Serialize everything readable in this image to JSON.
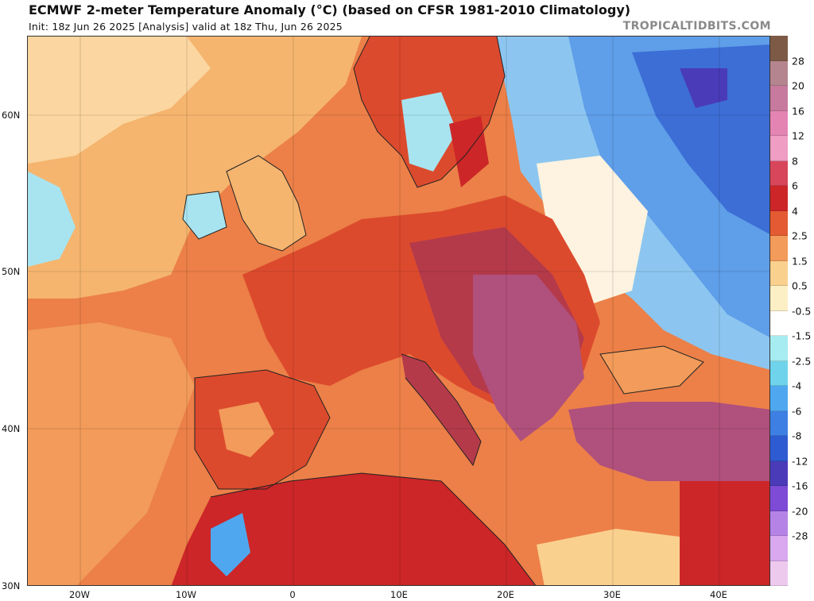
{
  "header": {
    "title": "ECMWF 2-meter Temperature Anomaly (°C) (based on CFSR 1981-2010 Climatology)",
    "subtitle": "Init: 18z Jun 26 2025   [Analysis]   valid at 18z Thu, Jun 26 2025",
    "brand": "TROPICALTIDBITS.COM"
  },
  "axes": {
    "lat_labels": [
      "60N",
      "50N",
      "40N",
      "30N"
    ],
    "lon_labels": [
      "20W",
      "10W",
      "0",
      "10E",
      "20E",
      "30E",
      "40E"
    ]
  },
  "colorbar": {
    "labels": [
      "28",
      "20",
      "16",
      "12",
      "8",
      "6",
      "4",
      "2.5",
      "1.5",
      "0.5",
      "-0.5",
      "-1.5",
      "-2.5",
      "-4",
      "-6",
      "-8",
      "-12",
      "-16",
      "-20",
      "-28"
    ],
    "colors": [
      "#7d5a46",
      "#b4858f",
      "#c77a9e",
      "#e384b3",
      "#ef9dc2",
      "#d7465b",
      "#cc2628",
      "#e45a32",
      "#f29b5a",
      "#fad08f",
      "#fcefc5",
      "#ffffff",
      "#a6ecf0",
      "#6fd4eb",
      "#4fa8ef",
      "#3e7fe3",
      "#2e5bd1",
      "#4a3bb8",
      "#7d4bd5",
      "#b583e6",
      "#d9a8ee",
      "#eec9ee"
    ]
  },
  "map": {
    "colors": {
      "land_hot": "#b43a4a",
      "land_very_hot": "#b0507c",
      "land_warm": "#dc4a2d",
      "sea_warm": "#ec8048",
      "atlantic_mild": "#f5b56f",
      "atlantic_cool": "#a8e4f0",
      "russia_cold": "#5f9ee8",
      "russia_colder": "#3c6ed6",
      "neutral": "#fdf3e0"
    }
  }
}
